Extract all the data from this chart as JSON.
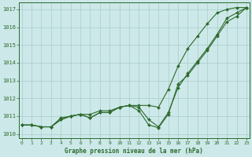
{
  "x": [
    0,
    1,
    2,
    3,
    4,
    5,
    6,
    7,
    8,
    9,
    10,
    11,
    12,
    13,
    14,
    15,
    16,
    17,
    18,
    19,
    20,
    21,
    22,
    23
  ],
  "line1": [
    1010.5,
    1010.5,
    1010.4,
    1010.4,
    1010.9,
    1011.0,
    1011.1,
    1011.1,
    1011.3,
    1011.3,
    1011.5,
    1011.6,
    1011.6,
    1011.6,
    1011.5,
    1012.5,
    1013.8,
    1014.8,
    1015.5,
    1016.2,
    1016.8,
    1017.0,
    1017.1,
    1017.1
  ],
  "line2": [
    1010.5,
    1010.5,
    1010.4,
    1010.4,
    1010.8,
    1011.0,
    1011.1,
    1010.9,
    1011.2,
    1011.2,
    1011.5,
    1011.6,
    1011.5,
    1010.8,
    1010.4,
    1011.2,
    1012.6,
    1013.4,
    1014.1,
    1014.8,
    1015.6,
    1016.5,
    1016.8,
    1017.1
  ],
  "line3": [
    1010.5,
    1010.5,
    1010.4,
    1010.4,
    1010.8,
    1011.0,
    1011.1,
    1010.9,
    1011.2,
    1011.2,
    1011.5,
    1011.6,
    1011.3,
    1010.5,
    1010.35,
    1011.1,
    1012.8,
    1013.3,
    1014.0,
    1014.7,
    1015.5,
    1016.3,
    1016.6,
    1017.1
  ],
  "line_color": "#2d6a2d",
  "bg_color": "#cce8e8",
  "grid_color": "#aacccc",
  "xlabel": "Graphe pression niveau de la mer (hPa)",
  "ylim": [
    1009.75,
    1017.4
  ],
  "yticks": [
    1010,
    1011,
    1012,
    1013,
    1014,
    1015,
    1016,
    1017
  ],
  "xticks": [
    0,
    1,
    2,
    3,
    4,
    5,
    6,
    7,
    8,
    9,
    10,
    11,
    12,
    13,
    14,
    15,
    16,
    17,
    18,
    19,
    20,
    21,
    22,
    23
  ],
  "marker_size": 2.0,
  "linewidth": 0.8,
  "figsize": [
    3.2,
    2.0
  ],
  "dpi": 100
}
